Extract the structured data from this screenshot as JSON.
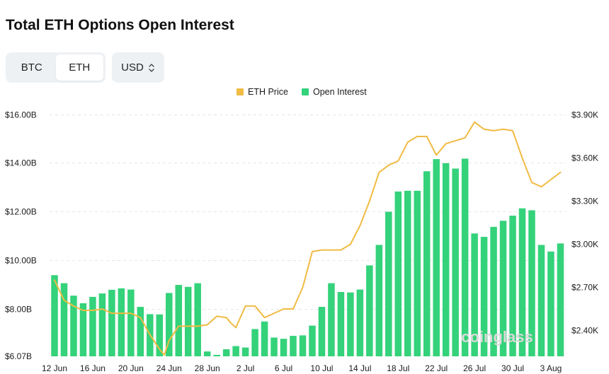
{
  "title": "Total ETH Options Open Interest",
  "toggle": {
    "btc_label": "BTC",
    "eth_label": "ETH",
    "active": "ETH"
  },
  "currency": {
    "value": "USD",
    "icon": "up-down-chevron-icon"
  },
  "colors": {
    "price": "#f0bb44",
    "oi": "#34d27a",
    "grid": "#e6e6e6"
  },
  "chart_data": {
    "type": "bar",
    "title": "Total ETH Options Open Interest",
    "legend": [
      "ETH Price",
      "Open Interest"
    ],
    "legend_position": "top-center",
    "x_tick_labels": [
      "12 Jun",
      "16 Jun",
      "20 Jun",
      "24 Jun",
      "28 Jun",
      "2 Jul",
      "6 Jul",
      "10 Jul",
      "14 Jul",
      "18 Jul",
      "22 Jul",
      "26 Jul",
      "30 Jul",
      "3 Aug"
    ],
    "y_left": {
      "label": "Open Interest",
      "min": 6.07,
      "ticks": [
        "$6.07B",
        "$8.00B",
        "$10.00B",
        "$12.00B",
        "$14.00B",
        "$16.00B"
      ],
      "tick_values": [
        6.07,
        8,
        10,
        12,
        14,
        16
      ]
    },
    "y_right": {
      "label": "ETH Price",
      "ticks": [
        "$2.40K",
        "$2.70K",
        "$3.00K",
        "$3.30K",
        "$3.60K",
        "$3.90K"
      ],
      "tick_values": [
        2.4,
        2.7,
        3.0,
        3.3,
        3.6,
        3.9
      ]
    },
    "grid": true,
    "series": [
      {
        "name": "Open Interest",
        "kind": "bar",
        "unit": "B USD",
        "start_date": "12 Jun",
        "values": [
          9.4,
          9.07,
          8.56,
          8.25,
          8.51,
          8.65,
          8.8,
          8.86,
          8.81,
          8.1,
          7.8,
          7.79,
          8.67,
          9.0,
          8.92,
          9.07,
          6.27,
          6.13,
          6.36,
          6.49,
          6.43,
          7.19,
          7.5,
          6.84,
          6.79,
          6.91,
          6.93,
          7.33,
          8.1,
          9.07,
          8.71,
          8.69,
          8.81,
          9.8,
          10.64,
          12.0,
          12.83,
          12.86,
          12.86,
          13.66,
          14.16,
          13.99,
          13.77,
          14.18,
          11.11,
          10.97,
          11.38,
          11.63,
          11.84,
          12.14,
          12.06,
          10.64,
          10.37,
          10.7
        ]
      },
      {
        "name": "ETH Price",
        "kind": "line",
        "unit": "K USD",
        "x": [
          0,
          1,
          2,
          3,
          4,
          5,
          6,
          7,
          8,
          9,
          9.5,
          10,
          11,
          11.5,
          12,
          13,
          14,
          15,
          16,
          17,
          18,
          18.5,
          19,
          20,
          21,
          22,
          23,
          24,
          25,
          26,
          27,
          28,
          29,
          30,
          31,
          32,
          33,
          34,
          35,
          36,
          37,
          38,
          39,
          40,
          41,
          42,
          43,
          44,
          45,
          46,
          47,
          48,
          49,
          50,
          51,
          52,
          53
        ],
        "values": [
          2.75,
          2.61,
          2.57,
          2.54,
          2.54,
          2.55,
          2.52,
          2.52,
          2.52,
          2.49,
          2.43,
          2.37,
          2.27,
          2.23,
          2.33,
          2.43,
          2.43,
          2.43,
          2.44,
          2.5,
          2.49,
          2.45,
          2.42,
          2.57,
          2.57,
          2.49,
          2.52,
          2.55,
          2.55,
          2.7,
          2.95,
          2.96,
          2.96,
          2.96,
          3.0,
          3.13,
          3.3,
          3.5,
          3.55,
          3.58,
          3.71,
          3.75,
          3.75,
          3.62,
          3.7,
          3.72,
          3.74,
          3.85,
          3.8,
          3.79,
          3.8,
          3.79,
          3.6,
          3.43,
          3.4,
          3.45,
          3.5
        ]
      }
    ],
    "watermark": "coinglass"
  }
}
